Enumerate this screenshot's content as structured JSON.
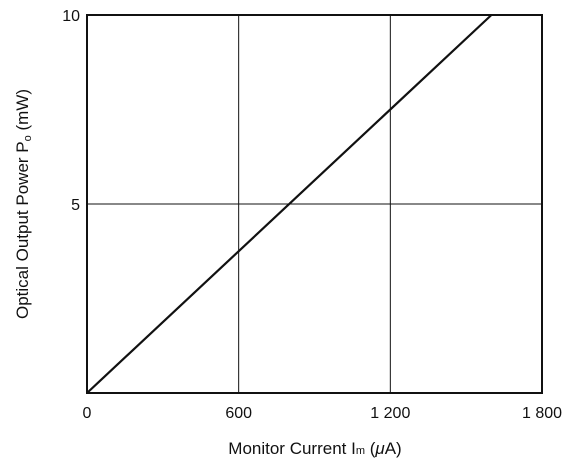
{
  "chart_data": {
    "type": "line",
    "xlabel": {
      "prefix": "Monitor Current  I",
      "subscript": "m",
      "unit_open": " (",
      "unit_greek": "μ",
      "unit_close": "A)"
    },
    "ylabel": {
      "prefix": "Optical Output Power  P",
      "subscript": "o",
      "unit": " (mW)"
    },
    "xlim": [
      0,
      1800
    ],
    "ylim": [
      0,
      10
    ],
    "x_ticks": [
      {
        "value": 0,
        "label": "0"
      },
      {
        "value": 600,
        "label": "600"
      },
      {
        "value": 1200,
        "label": "1 200"
      },
      {
        "value": 1800,
        "label": "1 800"
      }
    ],
    "y_ticks": [
      {
        "value": 5,
        "label": "5"
      },
      {
        "value": 10,
        "label": "10"
      }
    ],
    "grid": true,
    "series": [
      {
        "x": [
          0,
          1600
        ],
        "y": [
          0,
          10
        ],
        "color": "#111111"
      }
    ]
  }
}
